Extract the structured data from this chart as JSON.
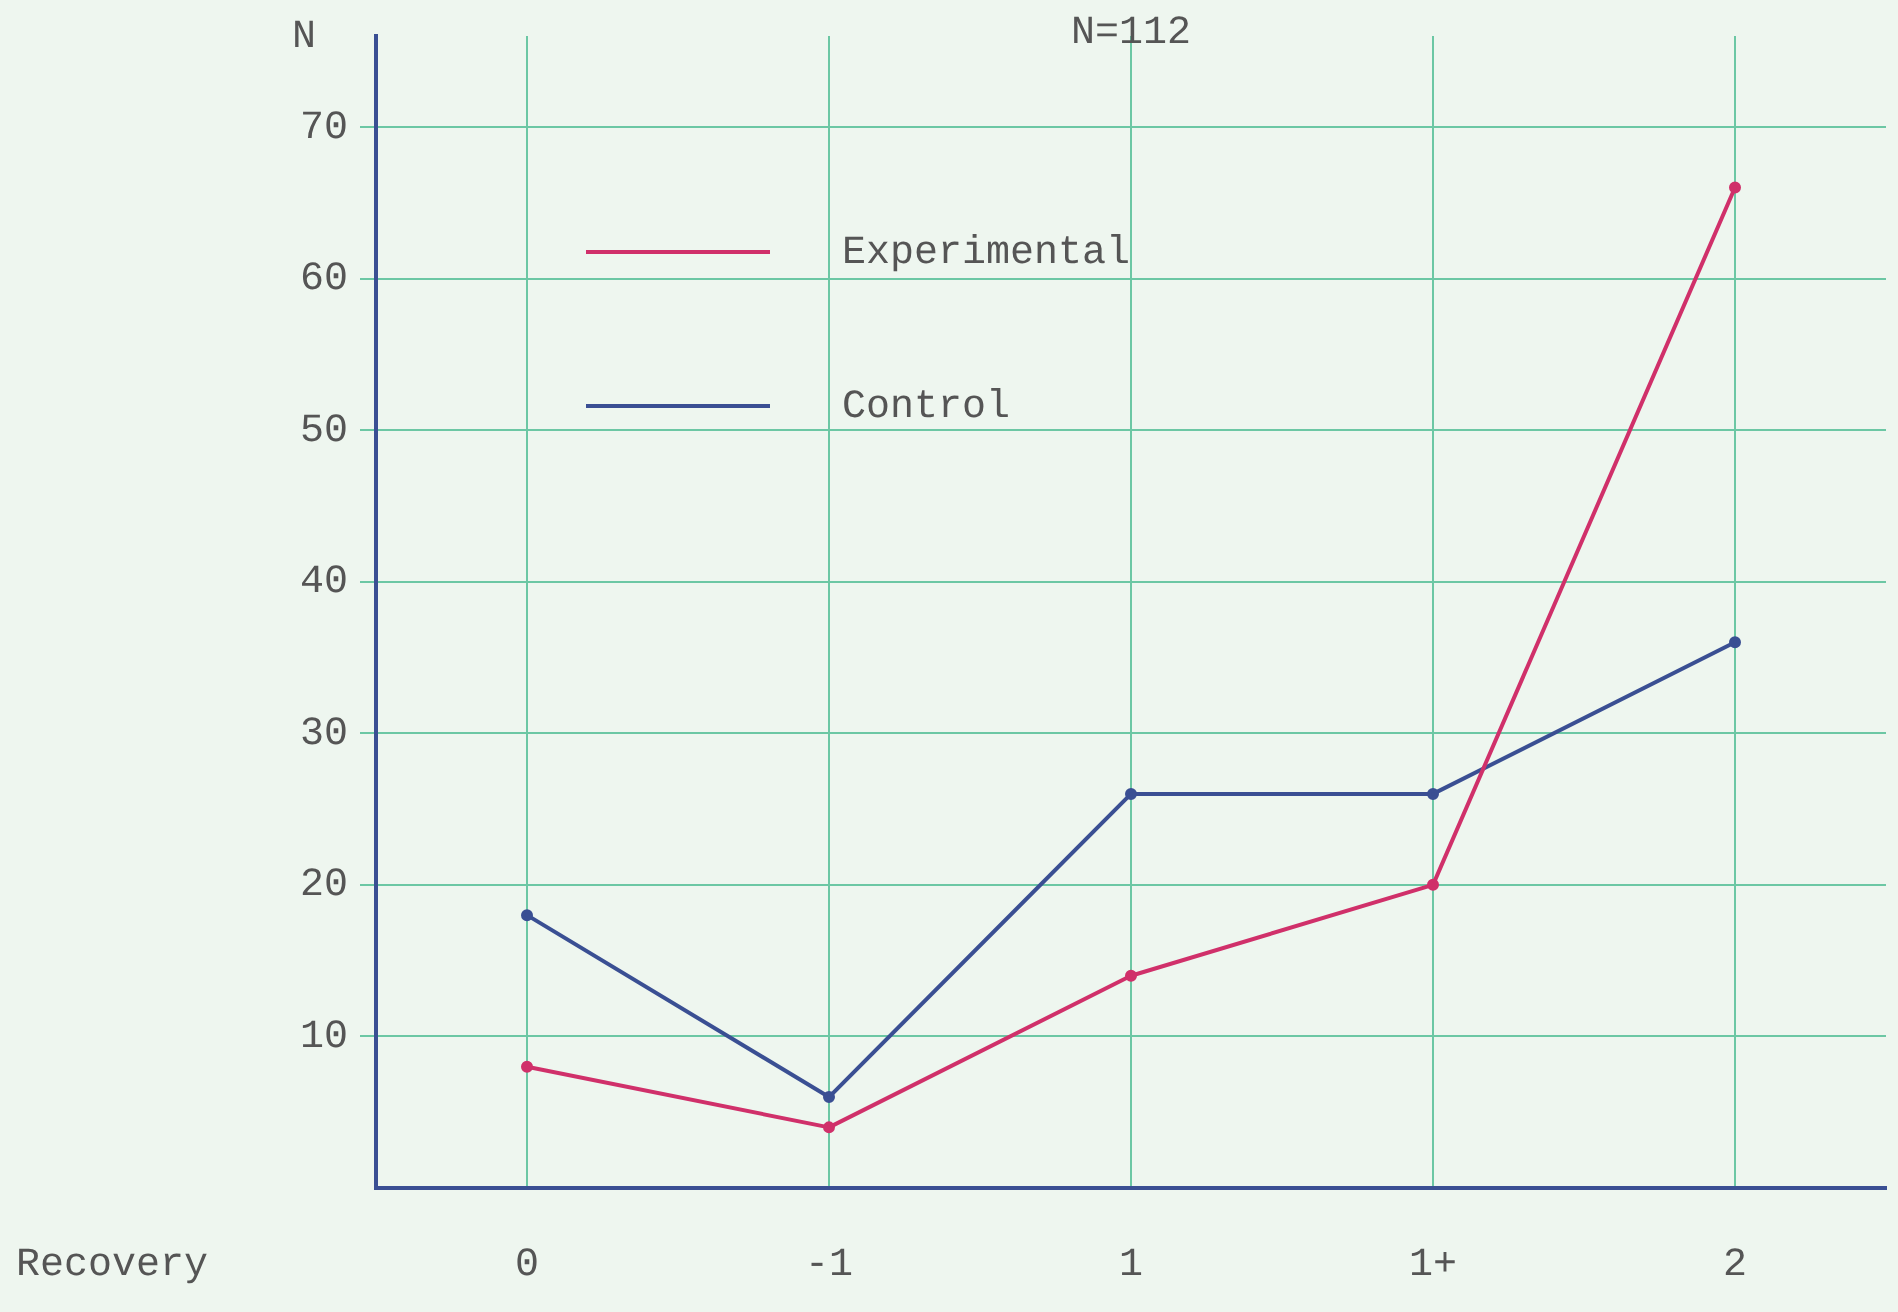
{
  "chart_data": {
    "type": "line",
    "title": "N=112",
    "xlabel": "Recovery",
    "ylabel": "N",
    "categories": [
      "0",
      "-1",
      "1",
      "1+",
      "2"
    ],
    "series": [
      {
        "name": "Experimental",
        "color": "#d0306a",
        "values": [
          8,
          4,
          14,
          20,
          66
        ]
      },
      {
        "name": "Control",
        "color": "#3a4f93",
        "values": [
          18,
          6,
          26,
          26,
          36
        ]
      }
    ],
    "ylim": [
      0,
      76
    ],
    "yticks": [
      10,
      20,
      30,
      40,
      50,
      60,
      70
    ],
    "grid": true,
    "legend": "top left",
    "marker": "circle",
    "line_style": "solid"
  }
}
